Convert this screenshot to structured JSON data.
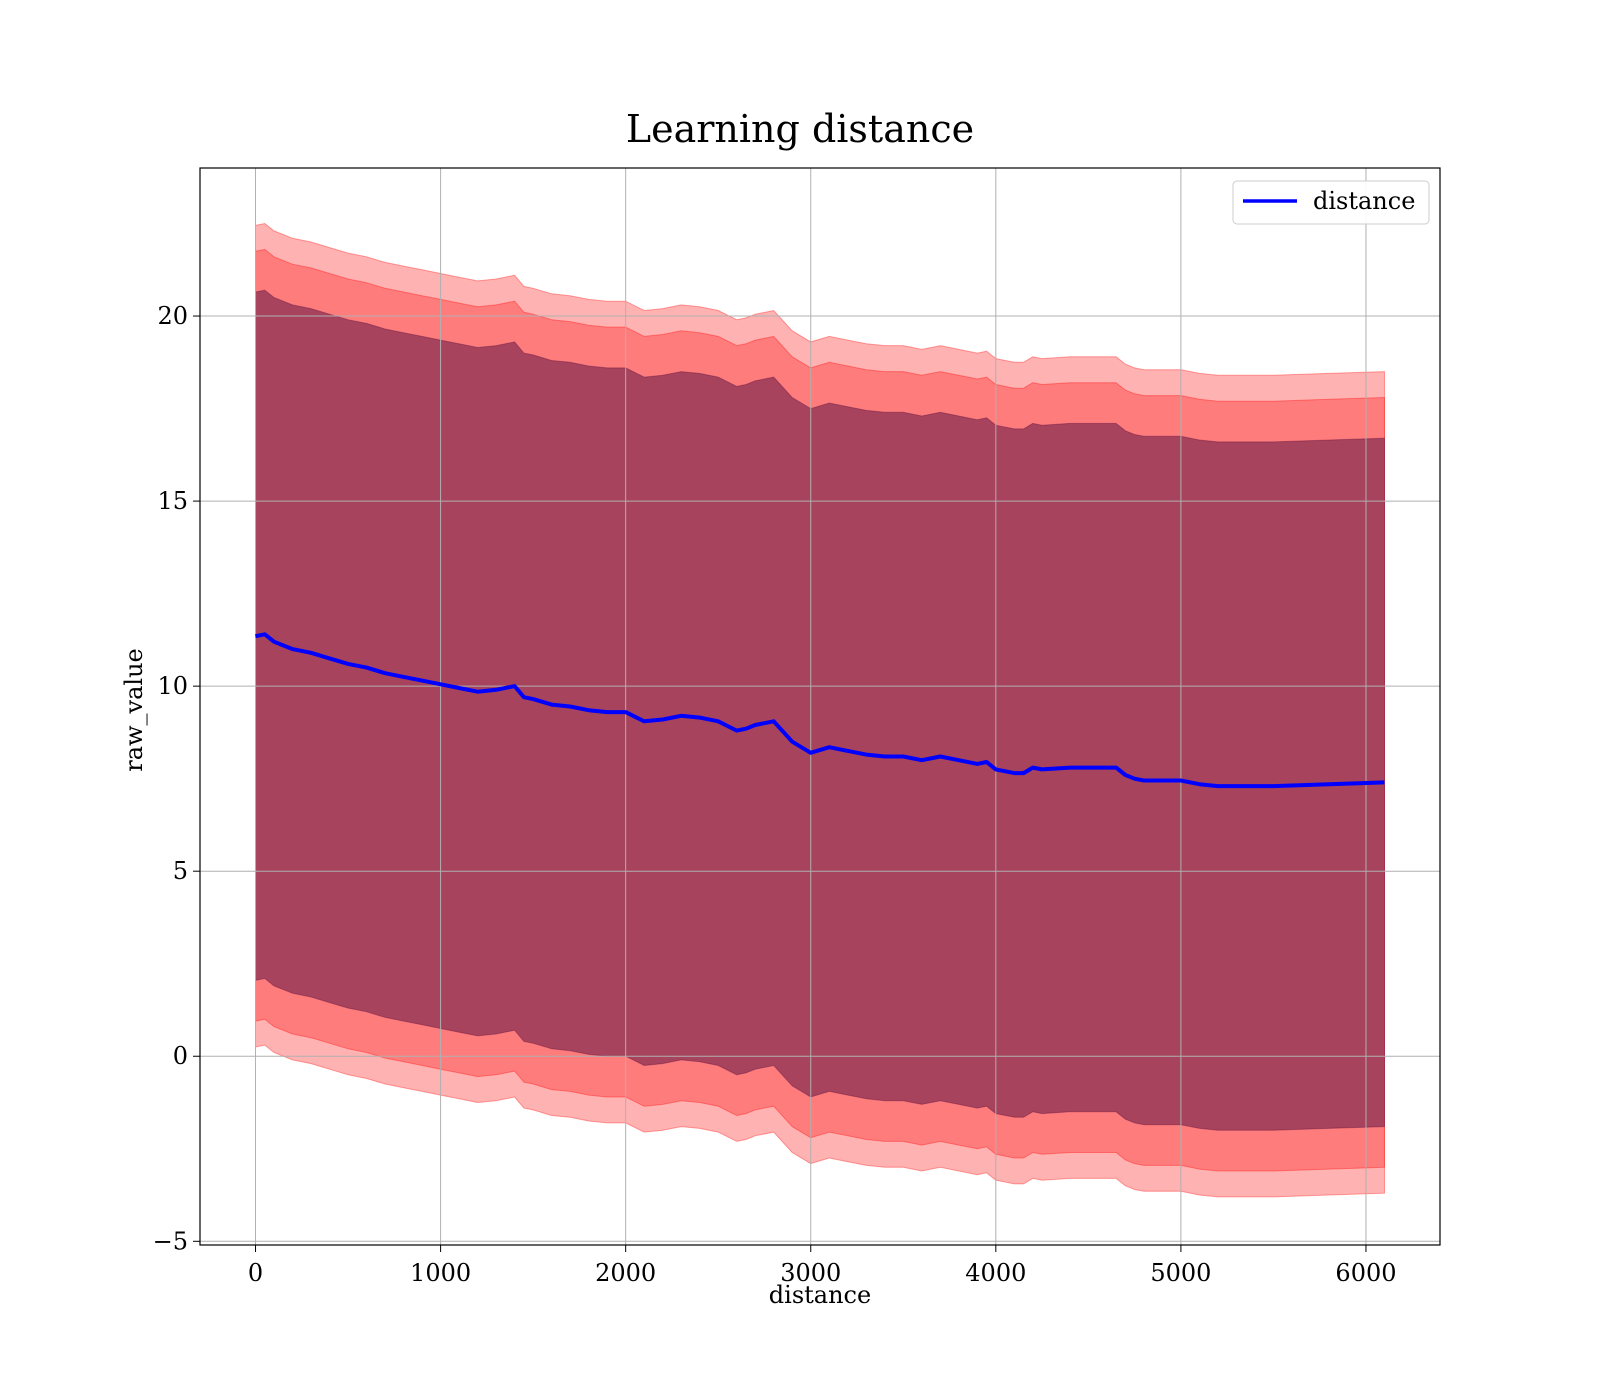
{
  "chart_data": {
    "type": "line",
    "title": "Learning distance",
    "xlabel": "distance",
    "ylabel": "raw_value",
    "xlim": [
      -300,
      6400
    ],
    "ylim": [
      -5.1,
      24
    ],
    "x_ticks": [
      0,
      1000,
      2000,
      3000,
      4000,
      5000,
      6000
    ],
    "y_ticks": [
      -5,
      0,
      5,
      10,
      15,
      20
    ],
    "x_tick_labels": [
      "0",
      "1000",
      "2000",
      "3000",
      "4000",
      "5000",
      "6000"
    ],
    "y_tick_labels": [
      "−5",
      "0",
      "5",
      "10",
      "15",
      "20"
    ],
    "grid": true,
    "legend": {
      "position": "top-right",
      "entries": [
        {
          "name": "distance",
          "color": "#0000ff"
        }
      ]
    },
    "colors": {
      "line": "#0000ff",
      "band": "#ff0000",
      "inner": "#500a3c"
    },
    "x": [
      0,
      50,
      100,
      200,
      300,
      400,
      500,
      600,
      700,
      800,
      900,
      1000,
      1100,
      1200,
      1300,
      1400,
      1450,
      1500,
      1600,
      1700,
      1800,
      1900,
      2000,
      2100,
      2200,
      2300,
      2400,
      2500,
      2600,
      2650,
      2700,
      2800,
      2900,
      3000,
      3100,
      3200,
      3300,
      3400,
      3500,
      3600,
      3700,
      3800,
      3900,
      3950,
      4000,
      4100,
      4150,
      4200,
      4250,
      4400,
      4500,
      4650,
      4700,
      4750,
      4800,
      4900,
      5000,
      5100,
      5200,
      5300,
      5500,
      5800,
      6100
    ],
    "series": [
      {
        "name": "distance",
        "values": [
          11.35,
          11.4,
          11.2,
          11.0,
          10.9,
          10.75,
          10.6,
          10.5,
          10.35,
          10.25,
          10.15,
          10.05,
          9.95,
          9.85,
          9.9,
          10.0,
          9.7,
          9.65,
          9.5,
          9.45,
          9.35,
          9.3,
          9.3,
          9.05,
          9.1,
          9.2,
          9.15,
          9.05,
          8.8,
          8.85,
          8.95,
          9.05,
          8.5,
          8.2,
          8.35,
          8.25,
          8.15,
          8.1,
          8.1,
          8.0,
          8.1,
          8.0,
          7.9,
          7.95,
          7.75,
          7.65,
          7.65,
          7.8,
          7.75,
          7.8,
          7.8,
          7.8,
          7.6,
          7.5,
          7.45,
          7.45,
          7.45,
          7.35,
          7.3,
          7.3,
          7.3,
          7.35,
          7.4
        ]
      }
    ],
    "bands": [
      {
        "sd": 1.0,
        "upper_offset": 9.3,
        "lower_offset": 9.3
      },
      {
        "sd": 2.0,
        "upper_offset": 10.4,
        "lower_offset": 10.4
      },
      {
        "sd": 3.0,
        "upper_offset": 11.1,
        "lower_offset": 11.1
      }
    ]
  }
}
